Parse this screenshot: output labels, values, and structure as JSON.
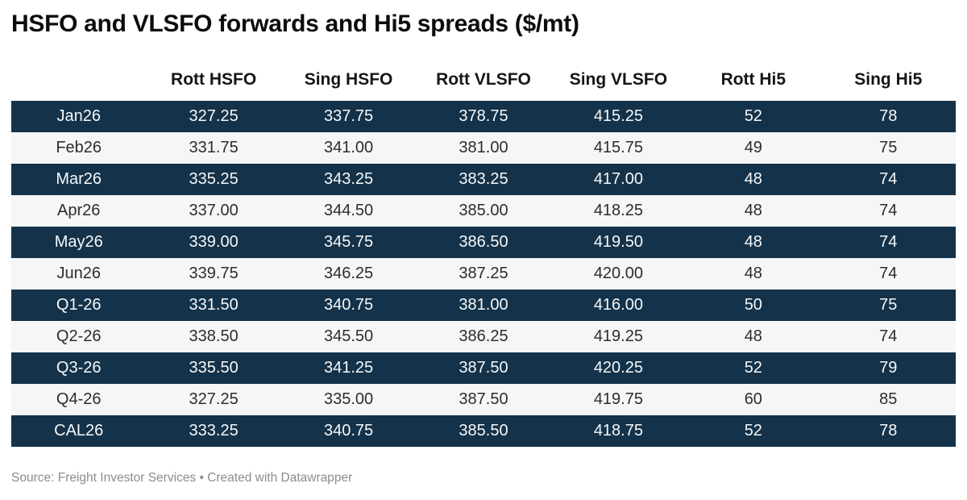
{
  "footer": {
    "text": "Source: Freight Investor Services • Created with Datawrapper"
  },
  "colors": {
    "dark_row_bg": "#143249",
    "dark_row_text": "#f5f8fa",
    "light_row_bg": "#f5f6f7",
    "light_row_text": "#2d2d2d",
    "header_text": "#161616",
    "footer_text": "#8c8c8c",
    "title_text": "#0c0c0c"
  },
  "chart_data": {
    "type": "table",
    "title": "HSFO and VLSFO forwards and Hi5 spreads ($/mt)",
    "columns": [
      "",
      "Rott HSFO",
      "Sing HSFO",
      "Rott VLSFO",
      "Sing VLSFO",
      "Rott Hi5",
      "Sing Hi5"
    ],
    "rows": [
      [
        "Jan26",
        "327.25",
        "337.75",
        "378.75",
        "415.25",
        "52",
        "78"
      ],
      [
        "Feb26",
        "331.75",
        "341.00",
        "381.00",
        "415.75",
        "49",
        "75"
      ],
      [
        "Mar26",
        "335.25",
        "343.25",
        "383.25",
        "417.00",
        "48",
        "74"
      ],
      [
        "Apr26",
        "337.00",
        "344.50",
        "385.00",
        "418.25",
        "48",
        "74"
      ],
      [
        "May26",
        "339.00",
        "345.75",
        "386.50",
        "419.50",
        "48",
        "74"
      ],
      [
        "Jun26",
        "339.75",
        "346.25",
        "387.25",
        "420.00",
        "48",
        "74"
      ],
      [
        "Q1-26",
        "331.50",
        "340.75",
        "381.00",
        "416.00",
        "50",
        "75"
      ],
      [
        "Q2-26",
        "338.50",
        "345.50",
        "386.25",
        "419.25",
        "48",
        "74"
      ],
      [
        "Q3-26",
        "335.50",
        "341.25",
        "387.50",
        "420.25",
        "52",
        "79"
      ],
      [
        "Q4-26",
        "327.25",
        "335.00",
        "387.50",
        "419.75",
        "60",
        "85"
      ],
      [
        "CAL26",
        "333.25",
        "340.75",
        "385.50",
        "418.75",
        "52",
        "78"
      ]
    ],
    "layout": {
      "row_striping": "odd-rows-dark-navy",
      "cell_alignment": "center",
      "grid": false
    }
  }
}
